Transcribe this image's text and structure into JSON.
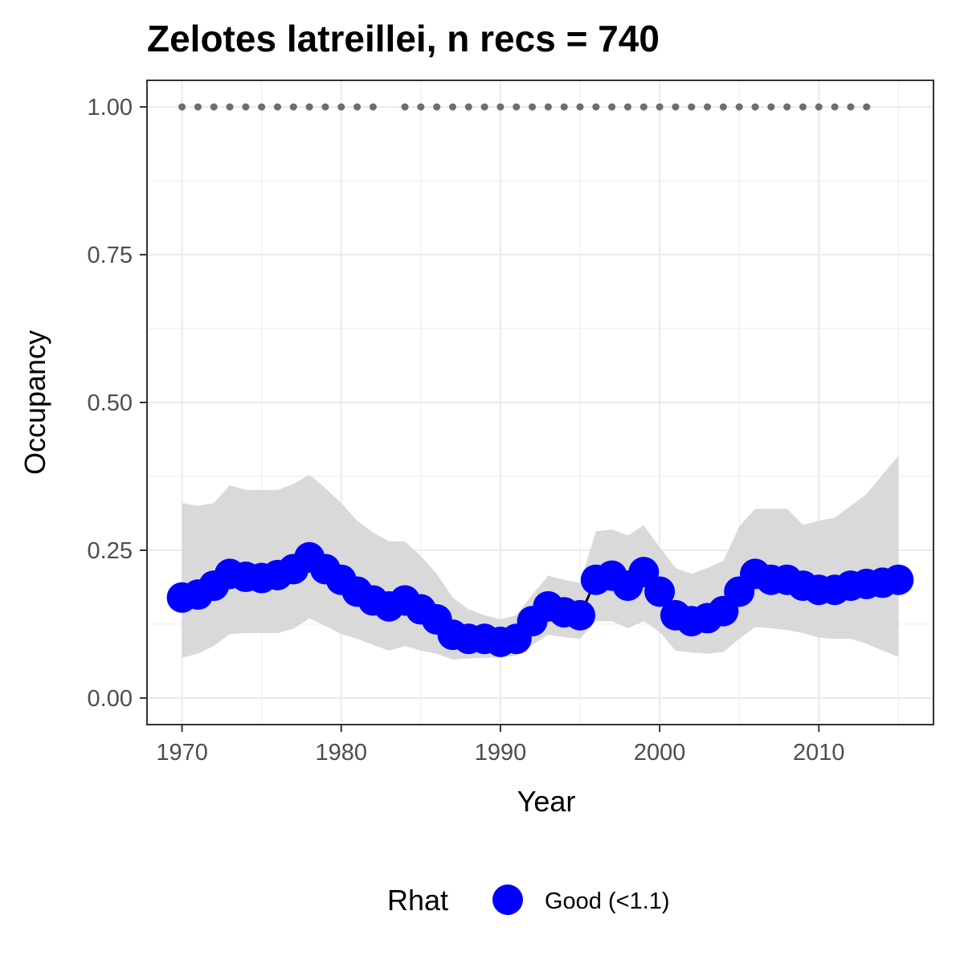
{
  "chart_data": {
    "type": "line",
    "title": "Zelotes latreillei, n recs = 740",
    "xlabel": "Year",
    "ylabel": "Occupancy",
    "xlim": [
      1967.8,
      2017.2
    ],
    "ylim": [
      -0.045,
      1.045
    ],
    "x_ticks": [
      1970,
      1980,
      1990,
      2000,
      2010
    ],
    "x_tick_labels": [
      "1970",
      "1980",
      "1990",
      "2000",
      "2010"
    ],
    "y_ticks": [
      0,
      0.25,
      0.5,
      0.75,
      1.0
    ],
    "y_tick_labels": [
      "0.00",
      "0.25",
      "0.50",
      "0.75",
      "1.00"
    ],
    "grid": true,
    "legend": {
      "position": "bottom",
      "title": "Rhat",
      "entries": [
        {
          "label": "Good (<1.1)",
          "color": "#0000ff"
        }
      ]
    },
    "colors": {
      "points": "#0000ff",
      "line": "#000000",
      "ribbon": "#d9d9d9",
      "data_dots": "#6e6e6e",
      "grid": "#ebebeb"
    },
    "series": [
      {
        "years": [
          1970,
          1971,
          1972,
          1973,
          1974,
          1975,
          1976,
          1977,
          1978,
          1979,
          1980,
          1981,
          1982,
          1983,
          1984,
          1985,
          1986,
          1987,
          1988,
          1989,
          1990,
          1991,
          1992,
          1993,
          1994,
          1995,
          1996,
          1997,
          1998,
          1999,
          2000,
          2001,
          2002,
          2003,
          2004,
          2005,
          2006,
          2007,
          2008,
          2009,
          2010,
          2011,
          2012,
          2013,
          2014,
          2015
        ],
        "mean": [
          0.17,
          0.175,
          0.19,
          0.21,
          0.205,
          0.203,
          0.208,
          0.218,
          0.238,
          0.218,
          0.2,
          0.18,
          0.165,
          0.155,
          0.165,
          0.15,
          0.133,
          0.107,
          0.1,
          0.1,
          0.095,
          0.1,
          0.13,
          0.155,
          0.145,
          0.14,
          0.2,
          0.207,
          0.19,
          0.213,
          0.18,
          0.14,
          0.13,
          0.135,
          0.147,
          0.18,
          0.21,
          0.2,
          0.2,
          0.19,
          0.183,
          0.183,
          0.19,
          0.193,
          0.195,
          0.2
        ],
        "lower": [
          0.068,
          0.075,
          0.088,
          0.108,
          0.11,
          0.11,
          0.11,
          0.117,
          0.135,
          0.122,
          0.108,
          0.1,
          0.09,
          0.08,
          0.088,
          0.08,
          0.075,
          0.065,
          0.067,
          0.068,
          0.068,
          0.072,
          0.09,
          0.107,
          0.103,
          0.1,
          0.13,
          0.13,
          0.118,
          0.13,
          0.112,
          0.08,
          0.077,
          0.075,
          0.078,
          0.1,
          0.12,
          0.118,
          0.115,
          0.11,
          0.102,
          0.1,
          0.1,
          0.092,
          0.08,
          0.07
        ],
        "upper": [
          0.33,
          0.325,
          0.33,
          0.36,
          0.352,
          0.352,
          0.352,
          0.362,
          0.378,
          0.355,
          0.33,
          0.3,
          0.28,
          0.265,
          0.265,
          0.24,
          0.21,
          0.17,
          0.15,
          0.14,
          0.133,
          0.14,
          0.175,
          0.207,
          0.2,
          0.195,
          0.282,
          0.285,
          0.275,
          0.292,
          0.255,
          0.22,
          0.21,
          0.22,
          0.232,
          0.29,
          0.32,
          0.32,
          0.32,
          0.293,
          0.3,
          0.305,
          0.325,
          0.345,
          0.378,
          0.41
        ]
      }
    ],
    "data_years": {
      "value": 1.0,
      "years": [
        1970,
        1971,
        1972,
        1973,
        1974,
        1975,
        1976,
        1977,
        1978,
        1979,
        1980,
        1981,
        1982,
        1984,
        1985,
        1986,
        1987,
        1988,
        1989,
        1990,
        1991,
        1992,
        1993,
        1994,
        1995,
        1996,
        1997,
        1998,
        1999,
        2000,
        2001,
        2002,
        2003,
        2004,
        2005,
        2006,
        2007,
        2008,
        2009,
        2010,
        2011,
        2012,
        2013
      ]
    }
  }
}
